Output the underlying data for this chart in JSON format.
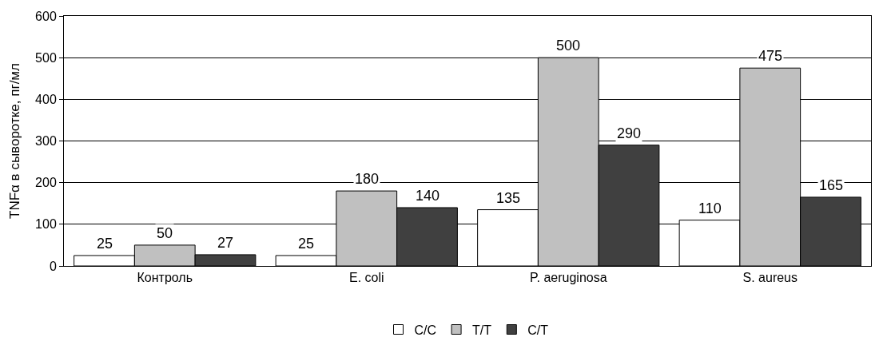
{
  "chart_data": {
    "type": "bar",
    "ylabel": "TNFα в сыворотке, пг/мл",
    "categories": [
      "Контроль",
      "E. coli",
      "P. aeruginosa",
      "S. aureus"
    ],
    "series": [
      {
        "name": "C/C",
        "color": "#ffffff",
        "values": [
          25,
          25,
          135,
          110
        ]
      },
      {
        "name": "T/T",
        "color": "#c0c0c0",
        "values": [
          50,
          180,
          500,
          475
        ]
      },
      {
        "name": "C/T",
        "color": "#404040",
        "values": [
          27,
          140,
          290,
          165
        ]
      }
    ],
    "ylim": [
      0,
      600
    ],
    "yticks": [
      0,
      100,
      200,
      300,
      400,
      500,
      600
    ],
    "grid": "y",
    "legend": "bottom",
    "data_labels": true
  }
}
